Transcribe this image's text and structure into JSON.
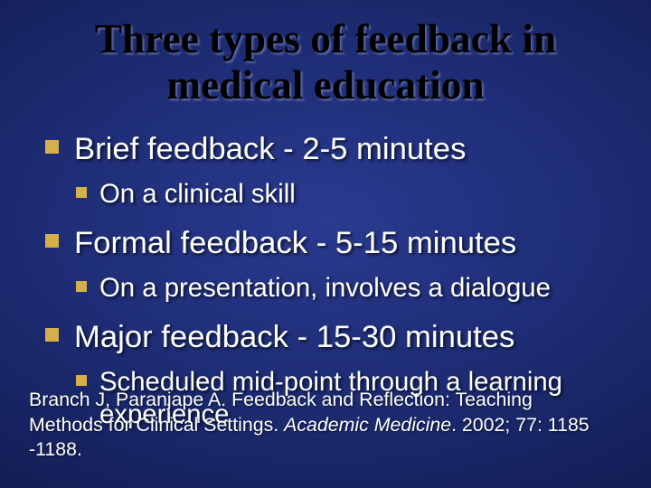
{
  "slide": {
    "background_gradient": {
      "type": "radial",
      "stops": [
        "#2a3a8f",
        "#1f2e78",
        "#14205a",
        "#0a1340"
      ]
    },
    "title": {
      "line1": "Three types of feedback in",
      "line2": "medical education",
      "color": "#000000",
      "font_family": "Times New Roman",
      "font_weight": "bold",
      "font_size_pt": 34,
      "shadow_color": "#8c96c8"
    },
    "body": {
      "text_color": "#ffffff",
      "bullet_color": "#d5b04a",
      "lvl1_font_size_pt": 26,
      "lvl2_font_size_pt": 22,
      "items": [
        {
          "text": "Brief feedback - 2-5 minutes",
          "sub": [
            {
              "text": "On a clinical skill"
            }
          ]
        },
        {
          "text": "Formal feedback - 5-15 minutes",
          "sub": [
            {
              "text": "On a presentation, involves a dialogue"
            }
          ]
        },
        {
          "text": "Major feedback - 15-30 minutes",
          "sub": [
            {
              "text": "Scheduled mid-point through a learning experience"
            }
          ]
        }
      ]
    },
    "citation": {
      "font_size_pt": 16,
      "prefix": "Branch J, Paranjape A. Feedback and Reflection: Teaching Methods for Clinical Settings. ",
      "italic": "Academic Medicine",
      "suffix": ". 2002; 77: 1185 -1188."
    }
  }
}
